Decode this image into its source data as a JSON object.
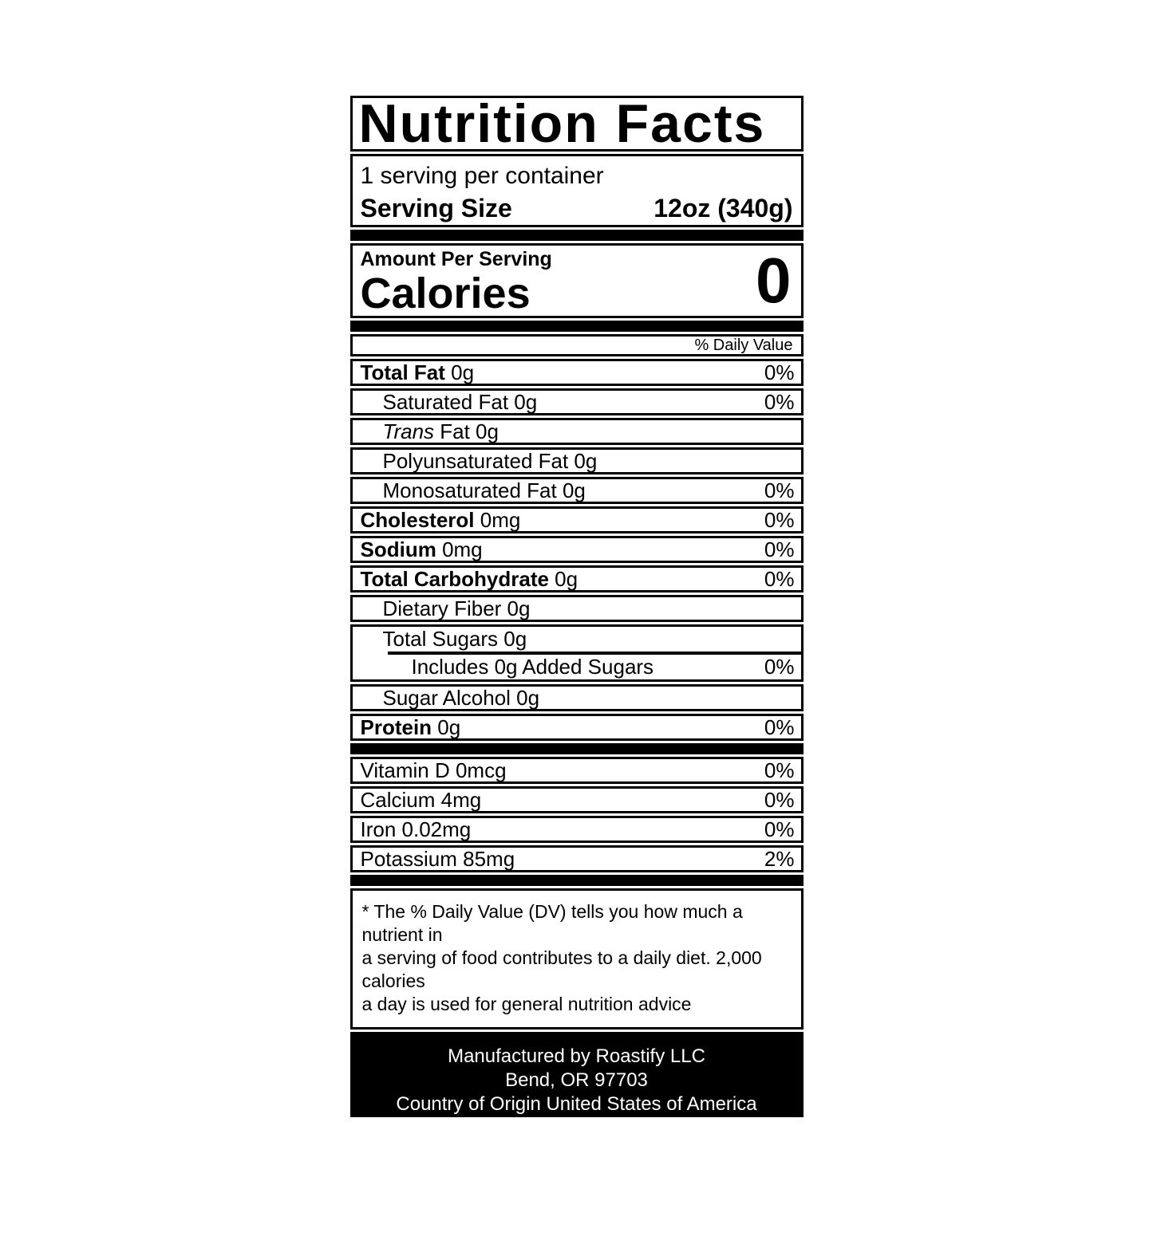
{
  "title": "Nutrition Facts",
  "serving": {
    "per_container": "1 serving per container",
    "size_label": "Serving Size",
    "size_value": "12oz (340g)"
  },
  "calories": {
    "amount_per_serving_label": "Amount Per Serving",
    "label": "Calories",
    "value": "0"
  },
  "daily_value_header": "% Daily Value",
  "nutrient_rows": [
    {
      "slug": "total-fat",
      "name": "Total Fat",
      "bold": true,
      "amount": "0g",
      "dv": "0%",
      "indent": 0
    },
    {
      "slug": "saturated-fat",
      "name": "Saturated Fat",
      "amount": "0g",
      "dv": "0%",
      "indent": 1
    },
    {
      "slug": "trans-fat",
      "name": "Trans",
      "italic": true,
      "rest": "Fat",
      "amount": "0g",
      "dv": "",
      "indent": 1
    },
    {
      "slug": "polyunsaturated-fat",
      "name": "Polyunsaturated Fat",
      "amount": "0g",
      "dv": "",
      "indent": 1
    },
    {
      "slug": "monosaturated-fat",
      "name": "Monosaturated Fat",
      "amount": "0g",
      "dv": "0%",
      "indent": 1
    },
    {
      "slug": "cholesterol",
      "name": "Cholesterol",
      "bold": true,
      "amount": "0mg",
      "dv": "0%",
      "indent": 0
    },
    {
      "slug": "sodium",
      "name": "Sodium",
      "bold": true,
      "amount": "0mg",
      "dv": "0%",
      "indent": 0
    },
    {
      "slug": "total-carbohydrate",
      "name": "Total Carbohydrate",
      "bold": true,
      "amount": "0g",
      "dv": "0%",
      "indent": 0,
      "dv_raised": true
    },
    {
      "slug": "dietary-fiber",
      "name": "Dietary Fiber",
      "amount": "0g",
      "dv": "",
      "indent": 1
    },
    {
      "group": [
        {
          "slug": "total-sugars",
          "name": "Total Sugars",
          "amount": "0g",
          "dv": "",
          "indent": 1
        },
        {
          "slug": "added-sugars",
          "name": "Includes 0g Added Sugars",
          "amount": "",
          "dv": "0%",
          "indent": 2
        }
      ]
    },
    {
      "slug": "sugar-alcohol",
      "name": "Sugar Alcohol",
      "amount": "0g",
      "dv": "",
      "indent": 1
    },
    {
      "slug": "protein",
      "name": "Protein",
      "bold": true,
      "amount": "0g",
      "dv": "0%",
      "indent": 0
    }
  ],
  "vitamin_rows": [
    {
      "slug": "vitamin-d",
      "name": "Vitamin D",
      "amount": "0mcg",
      "dv": "0%"
    },
    {
      "slug": "calcium",
      "name": "Calcium",
      "amount": "4mg",
      "dv": "0%"
    },
    {
      "slug": "iron",
      "name": "Iron",
      "amount": "0.02mg",
      "dv": "0%"
    },
    {
      "slug": "potassium",
      "name": "Potassium",
      "amount": "85mg",
      "dv": "2%"
    }
  ],
  "footnote_lines": [
    "* The % Daily Value (DV) tells you how much a nutrient in",
    "a serving of food contributes to a daily diet. 2,000 calories",
    "a day is used for general nutrition advice"
  ],
  "footer_lines": [
    "Manufactured by Roastify LLC",
    "Bend, OR 97703",
    "Country of Origin United States of America"
  ],
  "colors": {
    "ink": "#000000",
    "paper": "#ffffff"
  }
}
